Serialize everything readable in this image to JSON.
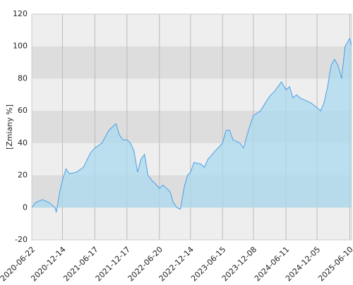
{
  "chart_data": {
    "type": "area",
    "y_label": "[Zmiany %]",
    "xlim": [
      "2020-06-22",
      "2025-06-20"
    ],
    "xticks": [
      "2020-06-22",
      "2020-12-14",
      "2021-06-17",
      "2021-12-17",
      "2022-06-20",
      "2022-12-14",
      "2023-06-15",
      "2023-12-08",
      "2024-06-11",
      "2024-12-05",
      "2025-06-10"
    ],
    "ylim": [
      -20,
      120
    ],
    "yticks": [
      -20,
      0,
      20,
      40,
      60,
      80,
      100,
      120
    ],
    "grid": true,
    "series": [
      {
        "color": "#4a9eea",
        "fill": "#a9d9ee",
        "x": [
          "2020-06-22",
          "2020-07-12",
          "2020-08-21",
          "2020-09-30",
          "2020-11-01",
          "2020-11-09",
          "2020-11-29",
          "2020-12-14",
          "2021-01-03",
          "2021-01-23",
          "2021-03-04",
          "2021-04-13",
          "2021-05-23",
          "2021-06-17",
          "2021-07-27",
          "2021-09-05",
          "2021-10-15",
          "2021-11-04",
          "2021-11-24",
          "2021-12-17",
          "2022-01-06",
          "2022-01-26",
          "2022-02-15",
          "2022-03-07",
          "2022-03-27",
          "2022-04-16",
          "2022-05-06",
          "2022-05-26",
          "2022-06-20",
          "2022-07-10",
          "2022-08-19",
          "2022-09-08",
          "2022-09-28",
          "2022-10-18",
          "2022-11-07",
          "2022-11-27",
          "2022-12-14",
          "2023-01-03",
          "2023-02-12",
          "2023-03-04",
          "2023-03-24",
          "2023-05-03",
          "2023-06-15",
          "2023-07-05",
          "2023-07-25",
          "2023-08-14",
          "2023-09-23",
          "2023-10-13",
          "2023-11-02",
          "2023-11-22",
          "2023-12-08",
          "2024-01-17",
          "2024-02-26",
          "2024-03-17",
          "2024-04-06",
          "2024-04-26",
          "2024-05-16",
          "2024-06-11",
          "2024-07-01",
          "2024-07-21",
          "2024-08-10",
          "2024-08-30",
          "2024-09-19",
          "2024-10-29",
          "2024-12-05",
          "2024-12-25",
          "2025-01-14",
          "2025-02-03",
          "2025-02-23",
          "2025-03-15",
          "2025-04-04",
          "2025-04-24",
          "2025-05-14",
          "2025-06-10",
          "2025-06-20"
        ],
        "values": [
          0,
          3,
          5,
          3,
          0,
          -3,
          10,
          17,
          24,
          21,
          22,
          25,
          34,
          37,
          40,
          48,
          52,
          45,
          42,
          42,
          40,
          35,
          22,
          30,
          33,
          20,
          17,
          15,
          12,
          14,
          10,
          3,
          0,
          -1,
          12,
          20,
          22,
          28,
          27,
          25,
          30,
          35,
          40,
          48,
          48,
          42,
          40,
          37,
          45,
          52,
          57,
          60,
          67,
          70,
          72,
          75,
          78,
          73,
          75,
          68,
          70,
          68,
          67,
          65,
          62,
          60,
          65,
          75,
          88,
          92,
          88,
          80,
          100,
          105,
          100
        ]
      }
    ]
  }
}
